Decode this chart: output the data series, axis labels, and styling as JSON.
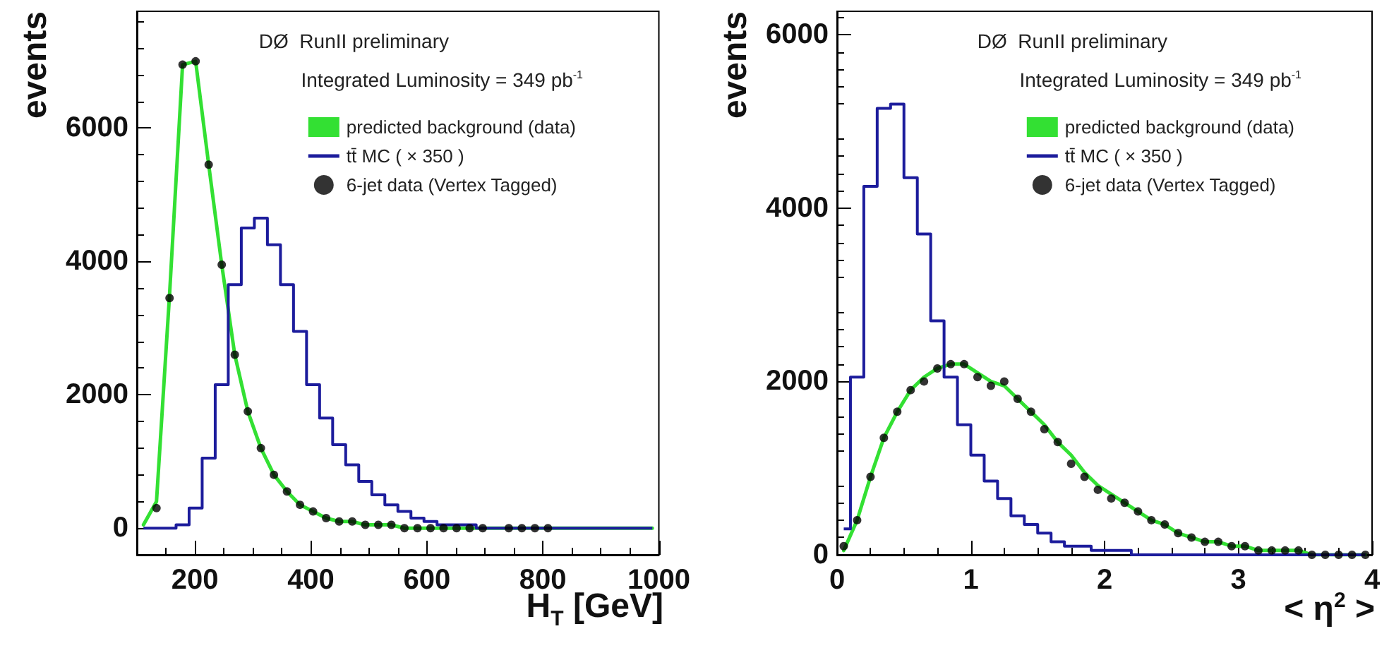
{
  "chart_data": [
    {
      "type": "line",
      "xlabel": "H$_{T}$ [GeV]",
      "ylabel": "events",
      "xlim": [
        100,
        1000
      ],
      "ylim": [
        -400,
        7750
      ],
      "xticks": [
        200,
        400,
        600,
        800,
        1000
      ],
      "yticks": [
        0,
        2000,
        4000,
        6000
      ],
      "grid": false,
      "legend": "top right",
      "annotations": [
        "DØ  RunII preliminary",
        "Integrated Luminosity = 349 pb$^{-1}$"
      ],
      "x": [
        111.25,
        133.75,
        156.25,
        178.75,
        201.25,
        223.75,
        246.25,
        268.75,
        291.25,
        313.75,
        336.25,
        358.75,
        381.25,
        403.75,
        426.25,
        448.75,
        471.25,
        493.75,
        516.25,
        538.75,
        561.25,
        583.75,
        606.25,
        628.75,
        651.25,
        673.75,
        696.25,
        718.75,
        741.25,
        763.75,
        786.25,
        808.75,
        831.25,
        853.75,
        876.25,
        898.75,
        921.25,
        943.75,
        966.25,
        988.75
      ],
      "series": [
        {
          "name": "predicted background (data)",
          "type": "line",
          "color": "#33e033",
          "values": [
            50,
            400,
            3500,
            6950,
            7000,
            5450,
            3950,
            2600,
            1750,
            1200,
            800,
            550,
            350,
            250,
            150,
            100,
            100,
            50,
            50,
            50,
            0,
            0,
            0,
            0,
            0,
            0,
            0,
            0,
            0,
            0,
            0,
            0,
            0,
            0,
            0,
            0,
            0,
            0,
            0,
            0
          ]
        },
        {
          "name": "tt̄ MC ( × 350 )",
          "type": "step",
          "color": "#1c1c9c",
          "values": [
            0,
            0,
            0,
            50,
            300,
            1050,
            2150,
            3650,
            4500,
            4650,
            4250,
            3650,
            2950,
            2150,
            1650,
            1250,
            950,
            700,
            500,
            350,
            250,
            150,
            100,
            50,
            50,
            50,
            0,
            0,
            0,
            0,
            0,
            0,
            0,
            0,
            0,
            0,
            0,
            0,
            0,
            0
          ]
        },
        {
          "name": "6-jet data (Vertex Tagged)",
          "type": "scatter",
          "marker": "circle",
          "color": "#000000",
          "values": [
            null,
            300,
            3450,
            6950,
            7000,
            5450,
            3950,
            2600,
            1750,
            1200,
            800,
            550,
            350,
            250,
            150,
            100,
            100,
            50,
            50,
            50,
            0,
            0,
            0,
            0,
            0,
            0,
            0,
            null,
            0,
            0,
            0,
            0,
            null,
            null,
            null,
            null,
            null,
            null,
            null,
            null
          ]
        }
      ]
    },
    {
      "type": "line",
      "xlabel": "< η$^{2}$ >",
      "ylabel": "events",
      "xlim": [
        0,
        4
      ],
      "ylim": [
        0,
        6270
      ],
      "xticks": [
        0,
        1,
        2,
        3,
        4
      ],
      "yticks": [
        0,
        2000,
        4000,
        6000
      ],
      "grid": false,
      "legend": "top right",
      "annotations": [
        "DØ  RunII preliminary",
        "Integrated Luminosity = 349 pb$^{-1}$"
      ],
      "x": [
        0.05,
        0.15,
        0.25,
        0.35,
        0.45,
        0.55,
        0.65,
        0.75,
        0.85,
        0.95,
        1.05,
        1.15,
        1.25,
        1.35,
        1.45,
        1.55,
        1.65,
        1.75,
        1.85,
        1.95,
        2.05,
        2.15,
        2.25,
        2.35,
        2.45,
        2.55,
        2.65,
        2.75,
        2.85,
        2.95,
        3.05,
        3.15,
        3.25,
        3.35,
        3.45,
        3.55,
        3.65,
        3.75,
        3.85,
        3.95
      ],
      "series": [
        {
          "name": "predicted background (data)",
          "type": "line",
          "color": "#33e033",
          "values": [
            50,
            400,
            900,
            1350,
            1650,
            1900,
            2050,
            2150,
            2200,
            2200,
            2100,
            2000,
            1950,
            1800,
            1650,
            1500,
            1300,
            1150,
            950,
            800,
            700,
            600,
            500,
            400,
            350,
            250,
            200,
            150,
            150,
            100,
            100,
            50,
            50,
            50,
            50,
            0,
            0,
            0,
            0,
            0
          ]
        },
        {
          "name": "tt̄ MC ( × 350 )",
          "type": "step",
          "color": "#1c1c9c",
          "values": [
            300,
            2050,
            4250,
            5150,
            5200,
            4350,
            3700,
            2700,
            2050,
            1500,
            1150,
            850,
            650,
            450,
            350,
            250,
            150,
            100,
            100,
            50,
            50,
            50,
            0,
            0,
            0,
            0,
            0,
            0,
            0,
            0,
            0,
            0,
            0,
            0,
            0,
            0,
            0,
            0,
            0,
            0
          ]
        },
        {
          "name": "6-jet data (Vertex Tagged)",
          "type": "scatter",
          "marker": "circle",
          "color": "#000000",
          "values": [
            100,
            400,
            900,
            1350,
            1650,
            1900,
            2000,
            2150,
            2200,
            2200,
            2050,
            1950,
            2000,
            1800,
            1650,
            1450,
            1300,
            1050,
            900,
            750,
            650,
            600,
            500,
            400,
            350,
            250,
            200,
            150,
            150,
            100,
            100,
            50,
            50,
            50,
            50,
            0,
            0,
            0,
            0,
            0
          ]
        }
      ]
    }
  ]
}
